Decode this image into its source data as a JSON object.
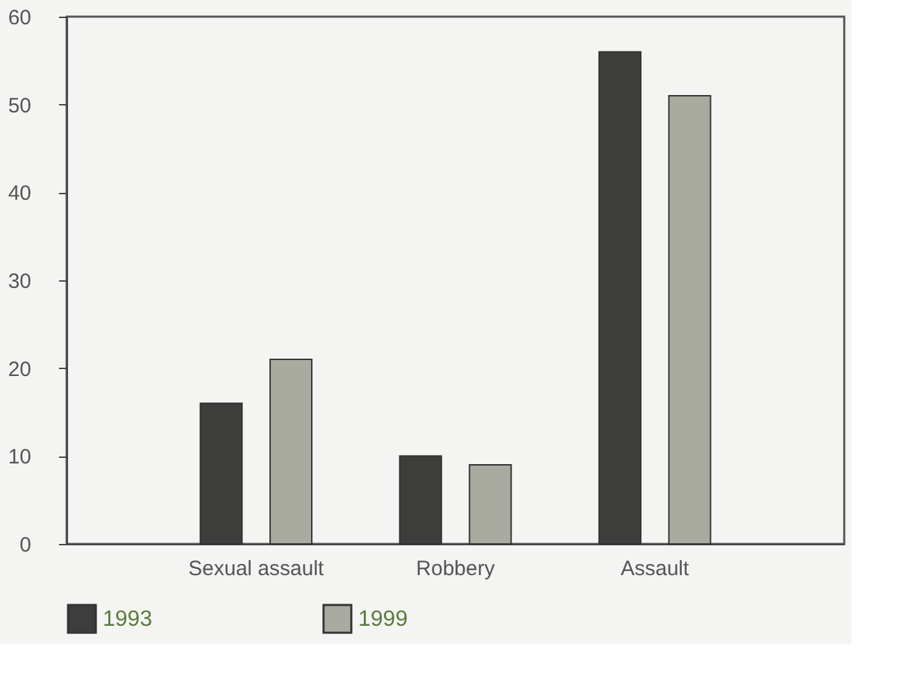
{
  "chart_data": {
    "type": "bar",
    "categories": [
      "Sexual assault",
      "Robbery",
      "Assault"
    ],
    "series": [
      {
        "name": "1993",
        "color": "#3d3d3b",
        "values": [
          16,
          10,
          56
        ]
      },
      {
        "name": "1999",
        "color": "#a9aaa0",
        "values": [
          21,
          9,
          51
        ]
      }
    ],
    "ylim": [
      0,
      60
    ],
    "yticks": [
      0,
      10,
      20,
      30,
      40,
      50,
      60
    ],
    "grid": false,
    "legend": "bottom"
  }
}
